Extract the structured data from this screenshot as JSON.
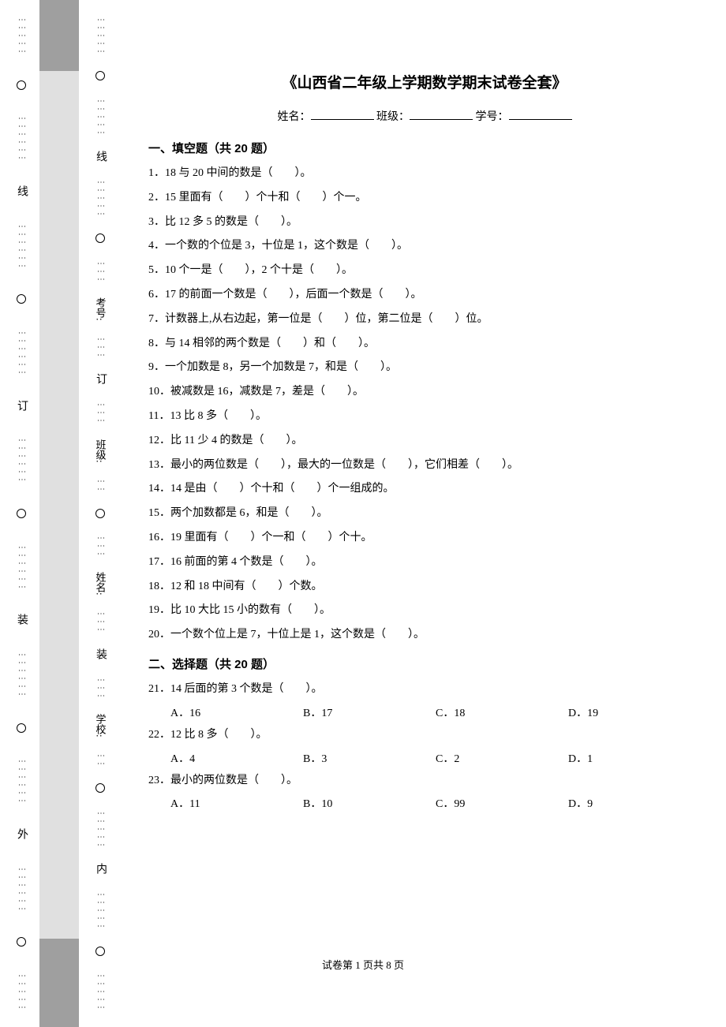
{
  "margin": {
    "outer_labels": [
      "外",
      "线",
      "订",
      "装"
    ],
    "inner_labels": [
      "内",
      "线",
      "订",
      "装"
    ],
    "fields": [
      "学校:",
      "姓名:",
      "班级:",
      "考号:"
    ]
  },
  "doc": {
    "title": "《山西省二年级上学期数学期末试卷全套》",
    "name_label": "姓名：",
    "class_label": "班级：",
    "id_label": "学号：",
    "section1": "一、填空题（共 20 题）",
    "section2": "二、选择题（共 20 题）",
    "questions": [
      "1．18 与 20 中间的数是（　　）。",
      "2．15 里面有（　　）个十和（　　）个一。",
      "3．比 12 多 5 的数是（　　）。",
      "4．一个数的个位是 3，十位是 1，这个数是（　　）。",
      "5．10 个一是（　　），2 个十是（　　）。",
      "6．17 的前面一个数是（　　），后面一个数是（　　）。",
      "7．计数器上,从右边起，第一位是（　　）位，第二位是（　　）位。",
      "8．与 14 相邻的两个数是（　　）和（　　）。",
      "9．一个加数是 8，另一个加数是 7，和是（　　）。",
      "10．被减数是 16，减数是 7，差是（　　）。",
      "11．13 比 8 多（　　）。",
      "12．比 11 少 4 的数是（　　）。",
      "13．最小的两位数是（　　），最大的一位数是（　　），它们相差（　　）。",
      "14．14 是由（　　）个十和（　　）个一组成的。",
      "15．两个加数都是 6，和是（　　）。",
      "16．19 里面有（　　）个一和（　　）个十。",
      "17．16 前面的第 4 个数是（　　）。",
      "18．12 和 18 中间有（　　）个数。",
      "19．比 10 大比 15 小的数有（　　）。",
      "20．一个数个位上是 7，十位上是 1，这个数是（　　）。"
    ],
    "mcq": [
      {
        "stem": "21．14 后面的第 3 个数是（　　）。",
        "opts": [
          "A．16",
          "B．17",
          "C．18",
          "D．19"
        ]
      },
      {
        "stem": "22．12 比 8 多（　　）。",
        "opts": [
          "A．4",
          "B．3",
          "C．2",
          "D．1"
        ]
      },
      {
        "stem": "23．最小的两位数是（　　）。",
        "opts": [
          "A．11",
          "B．10",
          "C．99",
          "D．9"
        ]
      }
    ],
    "footer": "试卷第 1 页共 8 页"
  }
}
